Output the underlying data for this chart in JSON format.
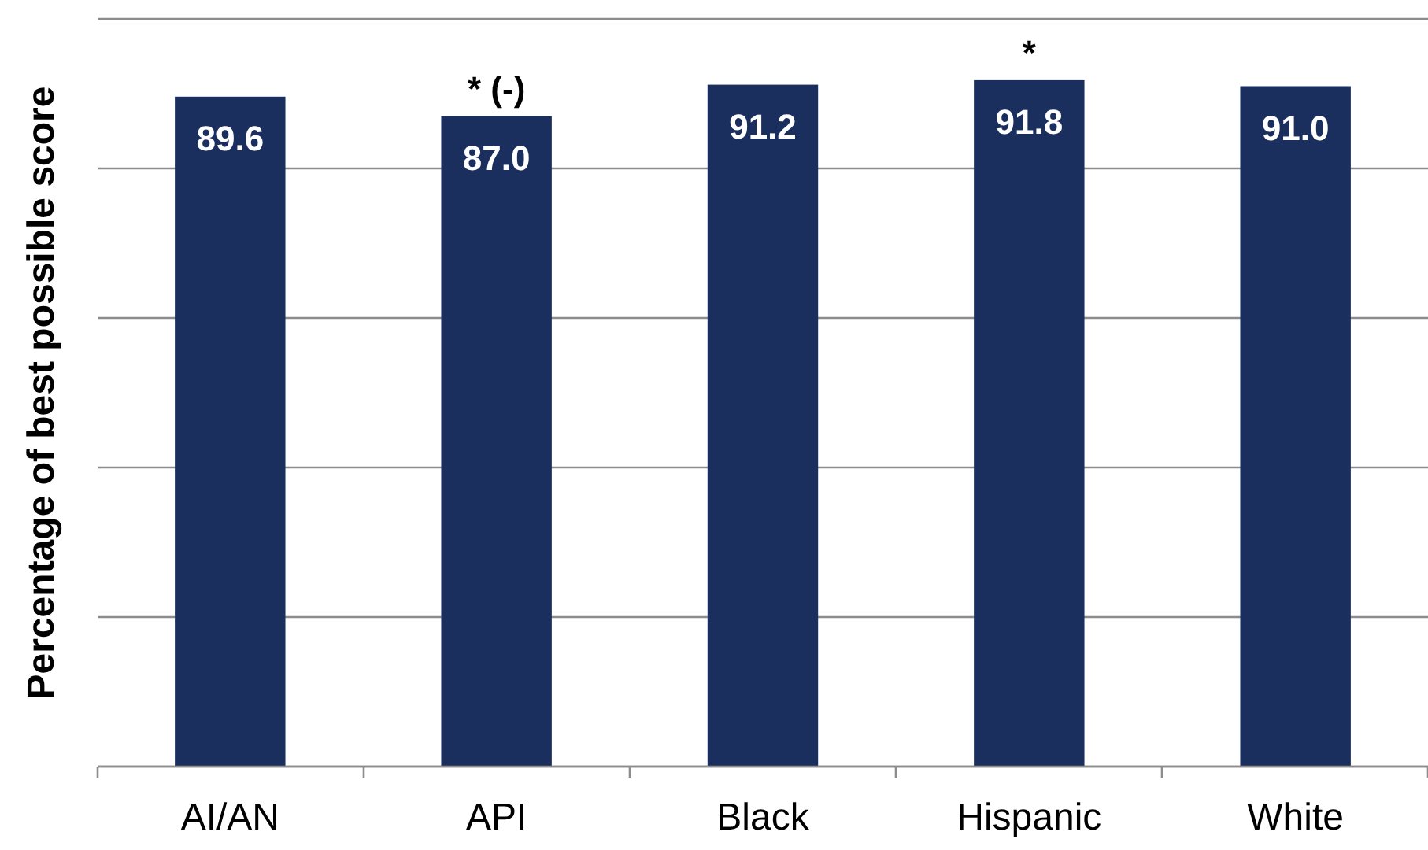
{
  "chart_data": {
    "type": "bar",
    "ylabel": "Percentage of best possible score",
    "categories": [
      "AI/AN",
      "API",
      "Black",
      "Hispanic",
      "White"
    ],
    "values": [
      89.6,
      87.0,
      91.2,
      91.8,
      91.0
    ],
    "value_labels": [
      "89.6",
      "87.0",
      "91.2",
      "91.8",
      "91.0"
    ],
    "color": "#1b2f5e",
    "ylim": [
      0,
      100
    ],
    "yticks": [
      {
        "value": 0,
        "label": null
      },
      {
        "value": 20,
        "label": null
      },
      {
        "value": 40,
        "label": null
      },
      {
        "value": 60,
        "label": null
      },
      {
        "value": 80,
        "label": null
      },
      {
        "value": 100,
        "label": null
      }
    ],
    "grid": "y",
    "tick_labels": "x",
    "annotations": [
      {
        "text": "* (-)",
        "x": "API",
        "y": 87.0
      },
      {
        "text": "*",
        "x": "Hispanic",
        "y": 91.8
      }
    ]
  }
}
